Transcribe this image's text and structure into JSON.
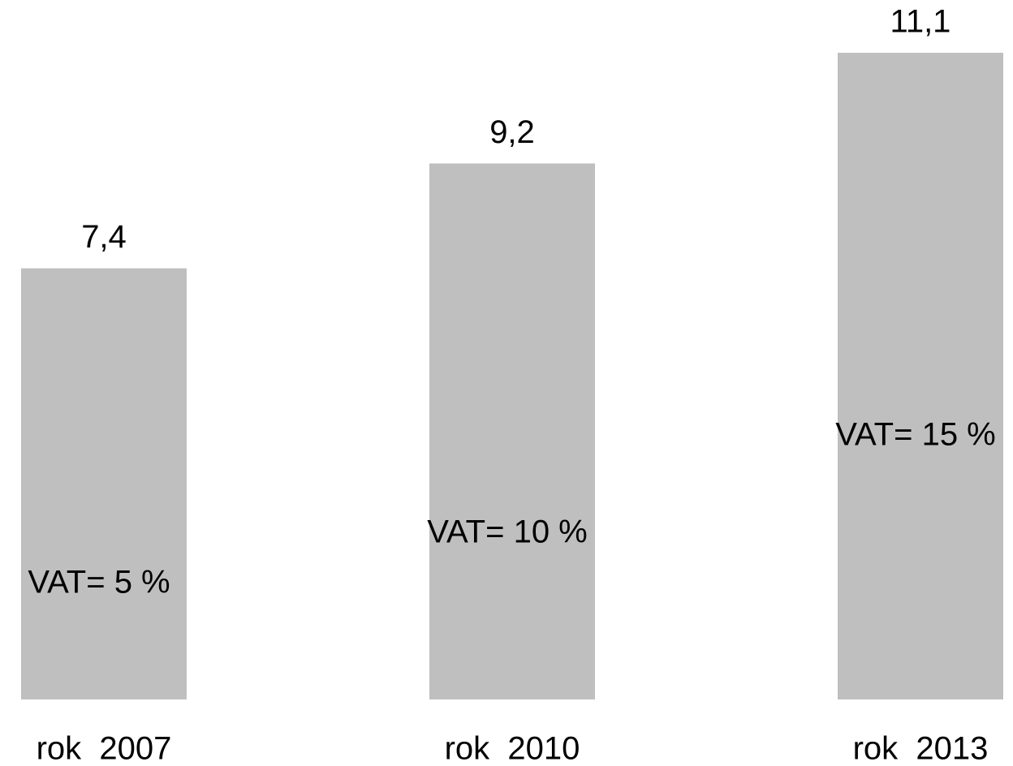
{
  "chart_data": {
    "type": "bar",
    "categories": [
      "rok  2007",
      "rok  2010",
      "rok  2013"
    ],
    "values": [
      7.4,
      9.2,
      11.1
    ],
    "value_labels": [
      "7,4",
      "9,2",
      "11,1"
    ],
    "annotations": [
      "VAT= 5 %",
      "VAT= 10 %",
      "VAT= 15 %"
    ],
    "color": "#bfbfbf"
  }
}
